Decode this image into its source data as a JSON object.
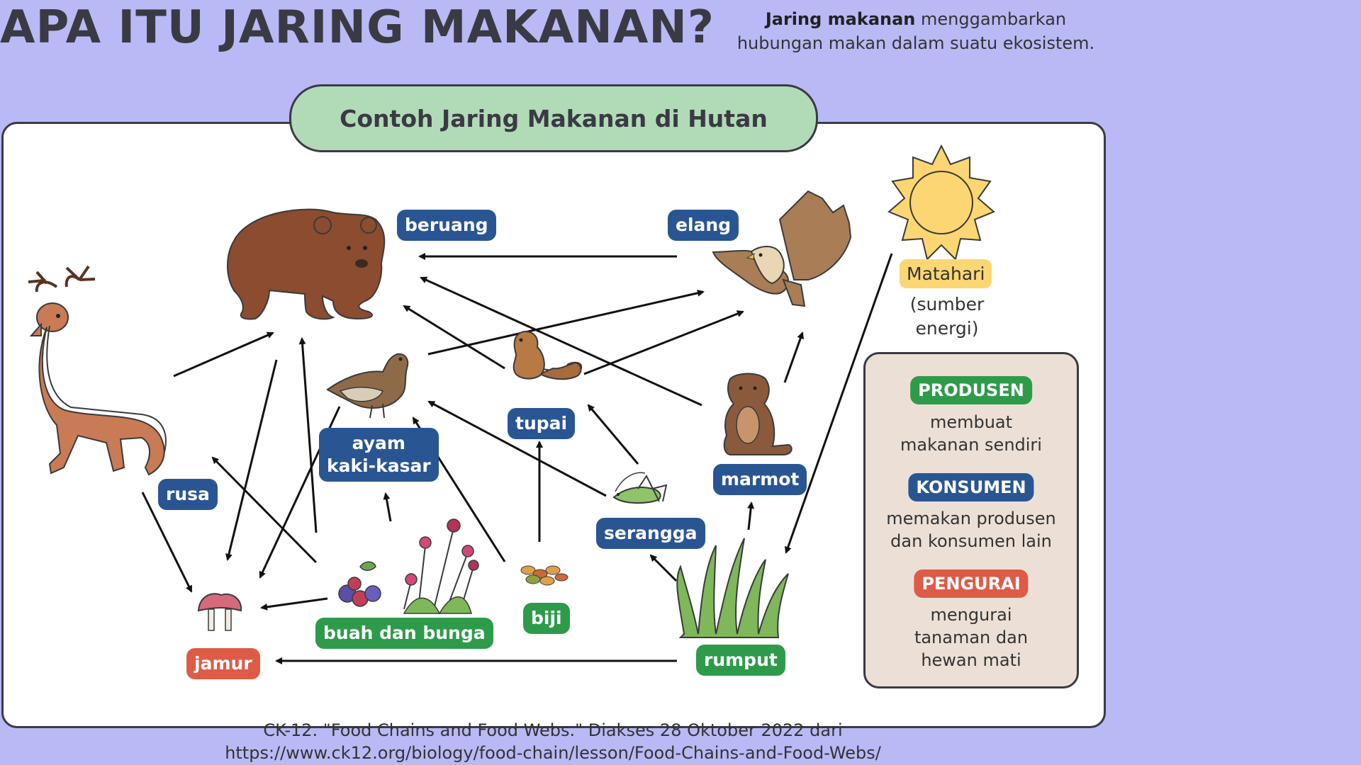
{
  "title": "APA ITU JARING MAKANAN?",
  "intro": {
    "bold": "Jaring makanan",
    "rest_line1": "menggambarkan",
    "line2": "hubungan makan dalam suatu ekosistem."
  },
  "diagram": {
    "heading": "Contoh Jaring Makanan di Hutan",
    "nodes": {
      "beruang": "beruang",
      "elang": "elang",
      "ayam_line1": "ayam",
      "ayam_line2": "kaki-kasar",
      "tupai": "tupai",
      "marmot": "marmot",
      "serangga": "serangga",
      "rusa": "rusa",
      "buah_dan_bunga": "buah dan bunga",
      "biji": "biji",
      "rumput": "rumput",
      "jamur": "jamur"
    },
    "sun": {
      "label": "Matahari",
      "sub_line1": "(sumber",
      "sub_line2": "energi)"
    },
    "edges": [
      [
        "elang",
        "beruang"
      ],
      [
        "rusa",
        "beruang"
      ],
      [
        "buah dan bunga",
        "beruang"
      ],
      [
        "tupai",
        "beruang"
      ],
      [
        "marmot",
        "beruang"
      ],
      [
        "ayam kaki-kasar",
        "elang"
      ],
      [
        "tupai",
        "elang"
      ],
      [
        "marmot",
        "elang"
      ],
      [
        "serangga",
        "ayam kaki-kasar"
      ],
      [
        "biji",
        "ayam kaki-kasar"
      ],
      [
        "buah dan bunga",
        "ayam kaki-kasar"
      ],
      [
        "biji",
        "tupai"
      ],
      [
        "serangga",
        "tupai"
      ],
      [
        "rumput",
        "serangga"
      ],
      [
        "rumput",
        "marmot"
      ],
      [
        "buah dan bunga",
        "rusa"
      ],
      [
        "Matahari",
        "rumput"
      ],
      [
        "beruang",
        "jamur"
      ],
      [
        "ayam kaki-kasar",
        "jamur"
      ],
      [
        "rusa",
        "jamur"
      ],
      [
        "buah dan bunga",
        "jamur"
      ],
      [
        "rumput",
        "jamur"
      ]
    ]
  },
  "legend": {
    "produsen": {
      "tag": "PRODUSEN",
      "line1": "membuat",
      "line2": "makanan sendiri",
      "color": "#2e9b4a"
    },
    "konsumen": {
      "tag": "KONSUMEN",
      "line1": "memakan produsen",
      "line2": "dan konsumen lain",
      "color": "#2a5593"
    },
    "pengurai": {
      "tag": "PENGURAI",
      "line1": "mengurai",
      "line2": "tanaman dan",
      "line3": "hewan mati",
      "color": "#de5b47"
    }
  },
  "credit": {
    "line1": "CK-12. \"Food Chains and Food Webs.\" Diakses 28 Oktober 2022 dari",
    "line2": "https://www.ck12.org/biology/food-chain/lesson/Food-Chains-and-Food-Webs/"
  },
  "colors": {
    "background": "#b9b9f6",
    "konsumen": "#2a5593",
    "produsen": "#2e9b4a",
    "pengurai": "#de5b47",
    "heading_pill": "#b1dbb7",
    "sun": "#fcd672"
  },
  "icons": [
    "deer-illustration",
    "bear-illustration",
    "eagle-illustration",
    "sun-icon",
    "grouse-illustration",
    "chipmunk-illustration",
    "marmot-illustration",
    "grasshopper-illustration",
    "grass-illustration",
    "berries-flowers-illustration",
    "seeds-illustration",
    "mushroom-illustration"
  ]
}
